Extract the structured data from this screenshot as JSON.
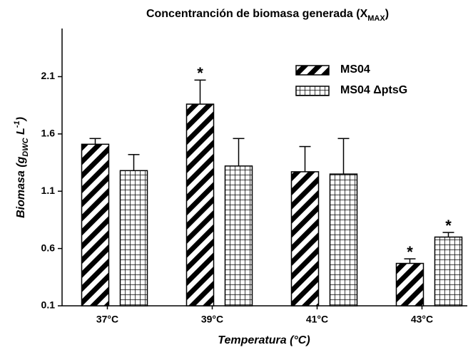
{
  "chart_data": {
    "type": "bar",
    "title": [
      "Concentranción de biomasa generada (X",
      "MAX",
      ")"
    ],
    "y_label": [
      "Biomasa (g",
      "DWC",
      " L",
      "-1",
      ")"
    ],
    "x_label": "Temperatura (°C)",
    "categories": [
      "37°C",
      "39°C",
      "41°C",
      "43°C"
    ],
    "series": [
      {
        "name": "MS04",
        "color": "#000000",
        "pattern": "diagonal",
        "values": [
          1.51,
          1.86,
          1.27,
          0.47
        ],
        "errors": [
          0.05,
          0.21,
          0.22,
          0.04
        ]
      },
      {
        "name": "MS04 ΔptsG",
        "color": "#000000",
        "pattern": "grid",
        "values": [
          1.28,
          1.32,
          1.25,
          0.7
        ],
        "errors": [
          0.14,
          0.24,
          0.31,
          0.04
        ]
      }
    ],
    "annotations": [
      {
        "text": "*",
        "series": 0,
        "category": 1
      },
      {
        "text": "*",
        "series": 0,
        "category": 3
      },
      {
        "text": "*",
        "series": 1,
        "category": 3
      }
    ],
    "ylim": [
      0.1,
      2.52
    ],
    "yticks": [
      0.1,
      0.6,
      1.1,
      1.6,
      2.1
    ],
    "legend": "upper right",
    "grid": false
  }
}
